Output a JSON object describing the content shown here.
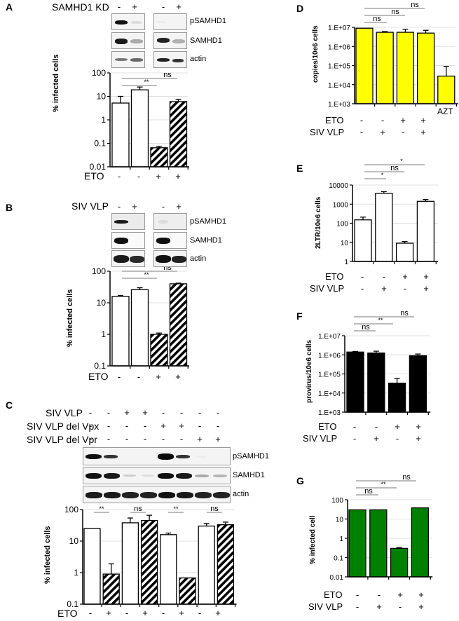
{
  "figure": {
    "panels": {
      "A": {
        "letter": "A",
        "condition_label": "SAMHD1 KD",
        "kd_signs": [
          "-",
          "+",
          "-",
          "+"
        ],
        "blot_labels": [
          "pSAMHD1",
          "SAMHD1",
          "actin"
        ],
        "eto_label": "ETO",
        "eto_signs": [
          "-",
          "-",
          "+",
          "+"
        ],
        "ylabel": "% infected cells",
        "ticks": [
          "100",
          "10",
          "1",
          "0.1",
          "0.01"
        ],
        "sig": [
          {
            "label": "**"
          },
          {
            "label": "ns"
          }
        ]
      },
      "B": {
        "letter": "B",
        "condition_label": "SIV VLP",
        "vlp_signs": [
          "-",
          "+",
          "-",
          "+"
        ],
        "blot_labels": [
          "pSAMHD1",
          "SAMHD1",
          "actin"
        ],
        "eto_label": "ETO",
        "eto_signs": [
          "-",
          "-",
          "+",
          "+"
        ],
        "ylabel": "% infected cells",
        "ticks": [
          "100",
          "10",
          "1",
          "0.1"
        ],
        "sig": [
          {
            "label": "**"
          },
          {
            "label": "ns"
          }
        ]
      },
      "C": {
        "letter": "C",
        "rows": [
          {
            "label": "SIV VLP",
            "signs": [
              "-",
              "-",
              "+",
              "+",
              "-",
              "-",
              "-",
              "-"
            ]
          },
          {
            "label": "SIV VLP del Vpx",
            "signs": [
              "-",
              "-",
              "-",
              "-",
              "+",
              "+",
              "-",
              "-"
            ]
          },
          {
            "label": "SIV VLP del Vpr",
            "signs": [
              "-",
              "-",
              "-",
              "-",
              "-",
              "-",
              "+",
              "+"
            ]
          }
        ],
        "blot_labels": [
          "pSAMHD1",
          "SAMHD1",
          "actin"
        ],
        "eto_label": "ETO",
        "eto_signs": [
          "-",
          "+",
          "-",
          "+",
          "-",
          "+",
          "-",
          "+"
        ],
        "ylabel": "% infected cells",
        "ticks": [
          "100",
          "10",
          "1",
          "0.1"
        ],
        "sig": [
          {
            "label": "**"
          },
          {
            "label": "ns"
          },
          {
            "label": "**"
          },
          {
            "label": "ns"
          }
        ]
      },
      "D": {
        "letter": "D",
        "ylabel": "copies/10e6 cells",
        "ticks": [
          "1.E+07",
          "1.E+06",
          "1.E+05",
          "1.E+04",
          "1.E+03"
        ],
        "extra_label": "AZT",
        "eto_label": "ETO",
        "eto_signs": [
          "-",
          "-",
          "+",
          "+"
        ],
        "vlp_label": "SIV VLP",
        "vlp_signs": [
          "-",
          "+",
          "-",
          "+"
        ],
        "sig": [
          {
            "label": "ns"
          },
          {
            "label": "ns"
          },
          {
            "label": "ns"
          }
        ]
      },
      "E": {
        "letter": "E",
        "ylabel": "2LTR/10e6 cells",
        "ticks": [
          "10000",
          "1000",
          "100",
          "10",
          "1"
        ],
        "eto_label": "ETO",
        "eto_signs": [
          "-",
          "-",
          "+",
          "+"
        ],
        "vlp_label": "SIV VLP",
        "vlp_signs": [
          "-",
          "+",
          "-",
          "+"
        ],
        "sig": [
          {
            "label": "*"
          },
          {
            "label": "ns"
          },
          {
            "label": "*"
          }
        ]
      },
      "F": {
        "letter": "F",
        "ylabel": "provirus/10e6 cells",
        "ticks": [
          "1.E+07",
          "1.E+06",
          "1.E+05",
          "1.E+04",
          "1.E+03"
        ],
        "eto_label": "ETO",
        "eto_signs": [
          "-",
          "-",
          "+",
          "+"
        ],
        "vlp_label": "SIV VLP",
        "vlp_signs": [
          "-",
          "+",
          "-",
          "+"
        ],
        "sig": [
          {
            "label": "ns"
          },
          {
            "label": "**"
          },
          {
            "label": "ns"
          }
        ]
      },
      "G": {
        "letter": "G",
        "ylabel": "% infected cell",
        "ticks": [
          "100",
          "10",
          "1",
          "0.1",
          "0.01"
        ],
        "eto_label": "ETO",
        "eto_signs": [
          "-",
          "-",
          "+",
          "+"
        ],
        "vlp_label": "SIV VLP",
        "vlp_signs": [
          "-",
          "+",
          "-",
          "+"
        ],
        "sig": [
          {
            "label": "ns"
          },
          {
            "label": "**"
          },
          {
            "label": "ns"
          }
        ]
      }
    },
    "colors": {
      "open_bar": "#ffffff",
      "hatch_dark": "#000000",
      "yellow_bar": "#ffff00",
      "black_bar": "#000000",
      "green_bar": "#008000",
      "gridline": "#e0e0e0",
      "sig_line": "#7a7a7a"
    }
  },
  "chart_data": [
    {
      "panel": "A",
      "type": "bar",
      "yscale": "log",
      "categories": [
        "ETO- KD-",
        "ETO- KD+",
        "ETO+ KD-",
        "ETO+ KD+"
      ],
      "values": [
        5.2,
        19,
        0.065,
        6
      ],
      "errors_upper": [
        10,
        25,
        0.075,
        7.5
      ],
      "fill": [
        "open",
        "open",
        "hatched",
        "hatched"
      ],
      "ylabel": "% infected cells",
      "ylim": [
        0.01,
        100
      ],
      "annotations": [
        {
          "from": 1,
          "to": 2,
          "label": "**"
        },
        {
          "from": 1,
          "to": 3,
          "label": "ns"
        }
      ]
    },
    {
      "panel": "B",
      "type": "bar",
      "yscale": "log",
      "categories": [
        "ETO- VLP-",
        "ETO- VLP+",
        "ETO+ VLP-",
        "ETO+ VLP+"
      ],
      "values": [
        16,
        26,
        1.0,
        40
      ],
      "errors_upper": [
        17,
        30,
        1.1,
        42
      ],
      "fill": [
        "open",
        "open",
        "hatched",
        "hatched"
      ],
      "ylabel": "% infected cells",
      "ylim": [
        0.1,
        100
      ],
      "annotations": [
        {
          "from": 1,
          "to": 2,
          "label": "**"
        },
        {
          "from": 1,
          "to": 3,
          "label": "ns"
        }
      ]
    },
    {
      "panel": "C",
      "type": "bar",
      "yscale": "log",
      "categories": [
        "ctrl ETO-",
        "ctrl ETO+",
        "SIV VLP ETO-",
        "SIV VLP ETO+",
        "del Vpx ETO-",
        "del Vpx ETO+",
        "del Vpr ETO-",
        "del Vpr ETO+"
      ],
      "values": [
        25,
        0.9,
        38,
        45,
        16,
        0.68,
        30,
        33
      ],
      "errors_upper": [
        25,
        1.9,
        54,
        66,
        18,
        0.68,
        36,
        40
      ],
      "fill": [
        "open",
        "hatched",
        "open",
        "hatched",
        "open",
        "hatched",
        "open",
        "hatched"
      ],
      "ylabel": "% infected cells",
      "ylim": [
        0.1,
        100
      ],
      "annotations": [
        {
          "from": 0,
          "to": 1,
          "label": "**"
        },
        {
          "from": 2,
          "to": 3,
          "label": "ns"
        },
        {
          "from": 4,
          "to": 5,
          "label": "**"
        },
        {
          "from": 6,
          "to": 7,
          "label": "ns"
        }
      ]
    },
    {
      "panel": "D",
      "type": "bar",
      "yscale": "log",
      "categories": [
        "ETO- VLP-",
        "ETO- VLP+",
        "ETO+ VLP-",
        "ETO+ VLP+",
        "AZT"
      ],
      "values": [
        9000000,
        5500000,
        5500000,
        5000000,
        28000
      ],
      "errors_upper": [
        9000000,
        6000000,
        8000000,
        7000000,
        90000
      ],
      "fill": [
        "yellow",
        "yellow",
        "yellow",
        "yellow",
        "yellow"
      ],
      "ylabel": "copies/10e6 cells",
      "ylim": [
        1000,
        10000000
      ],
      "annotations": [
        {
          "from": 0,
          "to": 1,
          "label": "ns"
        },
        {
          "from": 0,
          "to": 2,
          "label": "ns"
        },
        {
          "from": 0,
          "to": 3,
          "label": "ns"
        }
      ]
    },
    {
      "panel": "E",
      "type": "bar",
      "yscale": "log",
      "categories": [
        "ETO- VLP-",
        "ETO- VLP+",
        "ETO+ VLP-",
        "ETO+ VLP+"
      ],
      "values": [
        150,
        3700,
        9,
        1400
      ],
      "errors_upper": [
        210,
        4500,
        11,
        1750
      ],
      "fill": [
        "open",
        "open",
        "open",
        "open"
      ],
      "ylabel": "2LTR/10e6 cells",
      "ylim": [
        1,
        10000
      ],
      "annotations": [
        {
          "from": 0,
          "to": 1,
          "label": "*"
        },
        {
          "from": 0,
          "to": 2,
          "label": "ns"
        },
        {
          "from": 0,
          "to": 3,
          "label": "*"
        }
      ]
    },
    {
      "panel": "F",
      "type": "bar",
      "yscale": "log",
      "categories": [
        "ETO- VLP-",
        "ETO- VLP+",
        "ETO+ VLP-",
        "ETO+ VLP+"
      ],
      "values": [
        1400000,
        1250000,
        33000,
        900000
      ],
      "errors_upper": [
        1500000,
        1550000,
        58000,
        1100000
      ],
      "fill": [
        "black",
        "black",
        "black",
        "black"
      ],
      "ylabel": "provirus/10e6 cells",
      "ylim": [
        1000,
        10000000
      ],
      "annotations": [
        {
          "from": 0,
          "to": 1,
          "label": "ns"
        },
        {
          "from": 0,
          "to": 2,
          "label": "**"
        },
        {
          "from": 0,
          "to": 3,
          "label": "ns"
        }
      ]
    },
    {
      "panel": "G",
      "type": "bar",
      "yscale": "log",
      "categories": [
        "ETO- VLP-",
        "ETO- VLP+",
        "ETO+ VLP-",
        "ETO+ VLP+"
      ],
      "values": [
        30,
        30,
        0.3,
        38
      ],
      "errors_upper": [
        30,
        30,
        0.33,
        38
      ],
      "fill": [
        "green",
        "green",
        "green",
        "green"
      ],
      "ylabel": "% infected cell",
      "ylim": [
        0.01,
        100
      ],
      "annotations": [
        {
          "from": 0,
          "to": 1,
          "label": "ns"
        },
        {
          "from": 0,
          "to": 2,
          "label": "**"
        },
        {
          "from": 0,
          "to": 3,
          "label": "ns"
        }
      ]
    }
  ]
}
